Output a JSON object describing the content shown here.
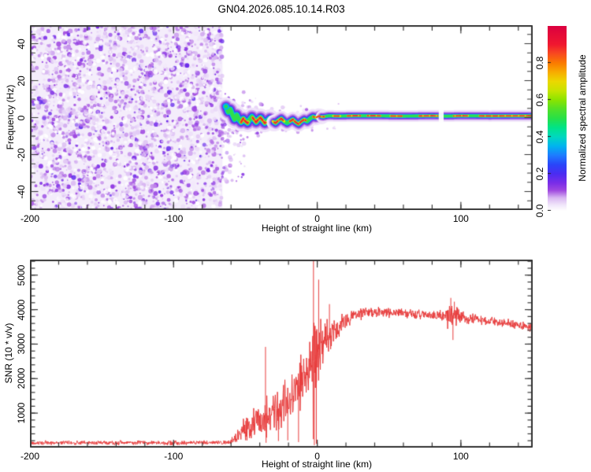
{
  "title": "GN04.2026.085.10.14.R03",
  "colors": {
    "background": "#ffffff",
    "frame": "#383838",
    "snr_line": "#e83c3c",
    "noise_base": "#f4edfb"
  },
  "chart_data": [
    {
      "id": "spectrogram",
      "type": "heatmap",
      "xlabel": "Height of straight line (km)",
      "ylabel": "Frequency (Hz)",
      "xlim": [
        -200,
        150
      ],
      "ylim": [
        -50,
        50
      ],
      "xticks": {
        "values": [
          -200,
          -100,
          0,
          100
        ],
        "labels": [
          "-200",
          "-100",
          "0",
          "100"
        ]
      },
      "yticks": {
        "values": [
          40,
          20,
          0,
          -20,
          -40
        ],
        "labels": [
          "40",
          "20",
          "0",
          "-20",
          "-40"
        ]
      },
      "x_minor_step": 20,
      "y_minor_step": 5,
      "colorbar": {
        "label": "Normalized spectral amplitude",
        "ticks": {
          "values": [
            0.0,
            0.2,
            0.4,
            0.6,
            0.8
          ],
          "labels": [
            "0.0",
            "0.2",
            "0.4",
            "0.6",
            "0.8"
          ]
        },
        "range": [
          0,
          1
        ],
        "stops": [
          [
            0.0,
            "#ffffff"
          ],
          [
            0.03,
            "#f2e8fb"
          ],
          [
            0.07,
            "#d9b8f2"
          ],
          [
            0.11,
            "#a049e0"
          ],
          [
            0.15,
            "#7a2ee8"
          ],
          [
            0.2,
            "#4b2cf2"
          ],
          [
            0.25,
            "#2a46fa"
          ],
          [
            0.3,
            "#1e7cff"
          ],
          [
            0.35,
            "#00b4f0"
          ],
          [
            0.4,
            "#00d8c0"
          ],
          [
            0.45,
            "#00e488"
          ],
          [
            0.5,
            "#28e048"
          ],
          [
            0.55,
            "#52e028"
          ],
          [
            0.6,
            "#8ce400"
          ],
          [
            0.65,
            "#c8e400"
          ],
          [
            0.7,
            "#ecd800"
          ],
          [
            0.75,
            "#f8ac00"
          ],
          [
            0.8,
            "#fa7a00"
          ],
          [
            0.85,
            "#f84a20"
          ],
          [
            0.9,
            "#f01830"
          ],
          [
            1.0,
            "#dc0040"
          ]
        ]
      },
      "noise_region": {
        "x_range": [
          -200,
          -66
        ],
        "count": 2400,
        "white_count": 420,
        "seed": 7,
        "t_range": [
          0.03,
          0.17
        ]
      },
      "speckles": [
        {
          "x_range": [
            -66,
            -50
          ],
          "f_range": [
            -36,
            14
          ],
          "count": 80
        },
        {
          "x_range": [
            -66,
            -38
          ],
          "f_range": [
            -11,
            11
          ],
          "count": 60
        },
        {
          "x_range": [
            -38,
            15
          ],
          "f_range": [
            -8,
            8
          ],
          "count": 40
        }
      ],
      "signal_band": {
        "trace": [
          [
            -63.5,
            6
          ],
          [
            -62,
            3
          ],
          [
            -60.5,
            4.5
          ],
          [
            -59,
            1.5
          ],
          [
            -57.5,
            -1
          ],
          [
            -56,
            1.5
          ],
          [
            -54.5,
            -1
          ],
          [
            -53,
            -2.5
          ],
          [
            -51.5,
            -0.5
          ],
          [
            -50,
            -2
          ],
          [
            -48.5,
            -3
          ],
          [
            -47,
            -1
          ],
          [
            -45.5,
            0.5
          ],
          [
            -44,
            -1
          ],
          [
            -42.5,
            -2.5
          ],
          [
            -41,
            -1
          ],
          [
            -39.5,
            0
          ],
          [
            -38,
            -1.5
          ],
          [
            -36.5,
            -3
          ],
          [
            -35,
            -2
          ],
          [
            -33,
            -0.5
          ],
          [
            -31,
            -2
          ],
          [
            -29,
            -3
          ],
          [
            -27,
            -1.5
          ],
          [
            -25,
            -0.5
          ],
          [
            -23,
            -2
          ],
          [
            -21,
            -3
          ],
          [
            -19,
            -2
          ],
          [
            -17,
            -1
          ],
          [
            -15,
            -2.5
          ],
          [
            -13,
            -3.5
          ],
          [
            -11,
            -2
          ],
          [
            -9,
            -1
          ],
          [
            -7,
            -2
          ],
          [
            -5,
            -0.5
          ],
          [
            -3,
            0.5
          ],
          [
            -1,
            0
          ],
          [
            1,
            0.8
          ],
          [
            4,
            0.4
          ],
          [
            8,
            1
          ],
          [
            15,
            0.8
          ],
          [
            25,
            1
          ],
          [
            40,
            1
          ],
          [
            60,
            0.8
          ],
          [
            80,
            1
          ],
          [
            90,
            0.8
          ],
          [
            100,
            1
          ],
          [
            120,
            0.9
          ],
          [
            150,
            1
          ]
        ],
        "layers": [
          [
            "#f0e4fa",
            15
          ],
          [
            "#d0aaf0",
            11
          ],
          [
            "#9850e0",
            8.5
          ],
          [
            "#4834ee",
            6.2
          ],
          [
            "#00c4e8",
            4.6
          ],
          [
            "#2ede4e",
            3.2
          ]
        ],
        "hot_yellow": [
          "#e8e000",
          2.4
        ],
        "hot_red": [
          "#e82636",
          1.6
        ],
        "hot_segments": [
          [
            -53,
            -48
          ],
          [
            -45,
            -36
          ],
          [
            -31,
            -23
          ],
          [
            -19,
            -8
          ],
          [
            -3,
            5
          ],
          [
            11,
            16
          ],
          [
            21,
            30
          ],
          [
            35,
            44
          ],
          [
            51,
            59
          ],
          [
            71,
            84
          ],
          [
            95,
            105
          ],
          [
            113,
            150
          ]
        ],
        "gaps": [
          [
            84.6,
            88
          ]
        ],
        "width_zones": [
          [
            -70,
            -30,
            1.55
          ],
          [
            -30,
            3,
            1.3
          ],
          [
            3,
            151,
            1.0
          ]
        ]
      }
    },
    {
      "id": "snr",
      "type": "line",
      "xlabel": "Height of straight line (km)",
      "ylabel": "SNR (10 * v/v)",
      "xlim": [
        -200,
        150
      ],
      "ylim": [
        0,
        5450
      ],
      "xticks": {
        "values": [
          -200,
          -100,
          0,
          100
        ],
        "labels": [
          "-200",
          "-100",
          "0",
          "100"
        ]
      },
      "yticks": {
        "values": [
          5000,
          4000,
          3000,
          2000,
          1000
        ],
        "labels": [
          "5000",
          "4000",
          "3000",
          "2000",
          "1000"
        ]
      },
      "x_minor_step": 20,
      "y_minor_step": 200,
      "line_color": "#e83c3c",
      "seed": 42,
      "envelope": [
        [
          -200,
          140,
          75
        ],
        [
          -62,
          140,
          75
        ],
        [
          -58,
          220,
          160
        ],
        [
          -54,
          420,
          330
        ],
        [
          -50,
          560,
          430
        ],
        [
          -46,
          700,
          520
        ],
        [
          -42,
          820,
          600
        ],
        [
          -38,
          950,
          680
        ],
        [
          -34,
          1020,
          640
        ],
        [
          -30,
          1120,
          700
        ],
        [
          -26,
          1130,
          760
        ],
        [
          -22,
          1320,
          760
        ],
        [
          -18,
          1500,
          800
        ],
        [
          -14,
          1720,
          860
        ],
        [
          -10,
          2060,
          900
        ],
        [
          -7,
          2320,
          880
        ],
        [
          -4,
          2550,
          1150
        ],
        [
          -2,
          2500,
          1500
        ],
        [
          0,
          2750,
          1350
        ],
        [
          2,
          2950,
          950
        ],
        [
          5,
          3020,
          700
        ],
        [
          8,
          3180,
          580
        ],
        [
          12,
          3380,
          420
        ],
        [
          18,
          3640,
          300
        ],
        [
          25,
          3820,
          230
        ],
        [
          32,
          3900,
          190
        ],
        [
          45,
          3930,
          180
        ],
        [
          60,
          3900,
          170
        ],
        [
          75,
          3860,
          165
        ],
        [
          88,
          3820,
          175
        ],
        [
          91,
          3840,
          420
        ],
        [
          97,
          3840,
          420
        ],
        [
          101,
          3770,
          190
        ],
        [
          115,
          3700,
          170
        ],
        [
          130,
          3600,
          160
        ],
        [
          150,
          3490,
          170
        ]
      ],
      "spikes": [
        [
          -36,
          2920
        ],
        [
          -2.6,
          5650
        ],
        [
          1,
          4870
        ],
        [
          8.5,
          4160
        ],
        [
          93,
          4340
        ],
        [
          95.5,
          4230
        ]
      ],
      "dips": [
        [
          -2,
          70
        ],
        [
          -0.6,
          110
        ],
        [
          -35.6,
          140
        ],
        [
          -27,
          190
        ],
        [
          -20.5,
          210
        ],
        [
          -13,
          160
        ],
        [
          94.5,
          3120
        ]
      ]
    }
  ]
}
